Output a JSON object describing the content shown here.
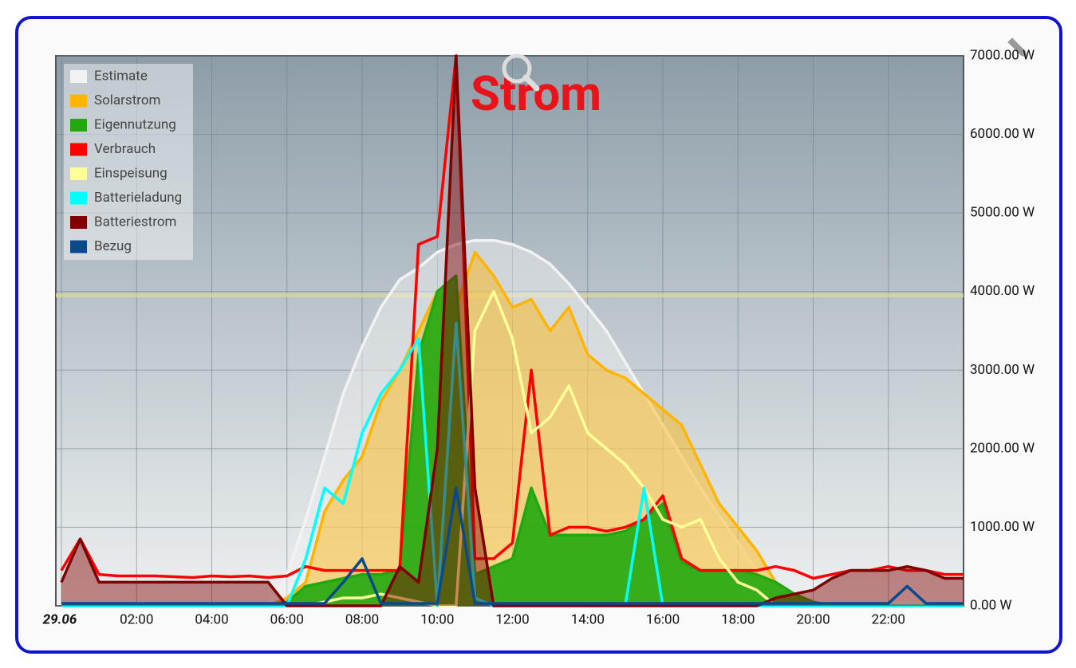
{
  "chart_data": {
    "type": "line",
    "title": "Strom",
    "x": [
      0,
      0.5,
      1,
      1.5,
      2,
      2.5,
      3,
      3.5,
      4,
      4.5,
      5,
      5.5,
      6,
      6.5,
      7,
      7.5,
      8,
      8.5,
      9,
      9.5,
      10,
      10.5,
      11,
      11.5,
      12,
      12.5,
      13,
      13.5,
      14,
      14.5,
      15,
      15.5,
      16,
      16.5,
      17,
      17.5,
      18,
      18.5,
      19,
      19.5,
      20,
      20.5,
      21,
      21.5,
      22,
      22.5,
      23,
      23.5,
      24
    ],
    "xlim": [
      0,
      24
    ],
    "xticks": [
      {
        "value": 0,
        "label": "29.06"
      },
      {
        "value": 2,
        "label": "02:00"
      },
      {
        "value": 4,
        "label": "04:00"
      },
      {
        "value": 6,
        "label": "06:00"
      },
      {
        "value": 8,
        "label": "08:00"
      },
      {
        "value": 10,
        "label": "10:00"
      },
      {
        "value": 12,
        "label": "12:00"
      },
      {
        "value": 14,
        "label": "14:00"
      },
      {
        "value": 16,
        "label": "16:00"
      },
      {
        "value": 18,
        "label": "18:00"
      },
      {
        "value": 20,
        "label": "20:00"
      },
      {
        "value": 22,
        "label": "22:00"
      }
    ],
    "ylim": [
      0,
      7000
    ],
    "yticks": [
      {
        "value": 0,
        "label": "0.00 W"
      },
      {
        "value": 1000,
        "label": "1000.00 W"
      },
      {
        "value": 2000,
        "label": "2000.00 W"
      },
      {
        "value": 3000,
        "label": "3000.00 W"
      },
      {
        "value": 4000,
        "label": "4000.00 W"
      },
      {
        "value": 5000,
        "label": "5000.00 W"
      },
      {
        "value": 6000,
        "label": "6000.00 W"
      },
      {
        "value": 7000,
        "label": "7000.00 W"
      }
    ],
    "grid": true,
    "legend": "top-left",
    "reference_line": 3950,
    "series": [
      {
        "name": "Estimate",
        "color": "#f2f2f2",
        "area": true,
        "values": [
          0,
          0,
          0,
          0,
          0,
          0,
          0,
          0,
          0,
          0,
          0,
          0,
          400,
          1100,
          1900,
          2700,
          3300,
          3800,
          4150,
          4300,
          4500,
          4600,
          4650,
          4650,
          4600,
          4500,
          4350,
          4100,
          3800,
          3500,
          3100,
          2700,
          2300,
          1900,
          1500,
          1150,
          800,
          450,
          150,
          0,
          0,
          0,
          0,
          0,
          0,
          0,
          0,
          0,
          0
        ]
      },
      {
        "name": "Solarstrom",
        "color": "#ffb400",
        "area": true,
        "values": [
          0,
          0,
          0,
          0,
          0,
          0,
          0,
          0,
          0,
          0,
          0,
          0,
          100,
          300,
          1200,
          1600,
          1900,
          2600,
          3000,
          3500,
          4000,
          3800,
          4500,
          4200,
          3800,
          3900,
          3500,
          3800,
          3200,
          3000,
          2900,
          2700,
          2500,
          2300,
          1800,
          1300,
          1000,
          700,
          300,
          150,
          50,
          0,
          0,
          0,
          0,
          0,
          0,
          0,
          0
        ]
      },
      {
        "name": "Eigennutzung",
        "color": "#22a80f",
        "area": true,
        "values": [
          0,
          0,
          0,
          0,
          0,
          0,
          0,
          0,
          0,
          0,
          0,
          0,
          50,
          250,
          300,
          350,
          400,
          400,
          450,
          3200,
          4000,
          4200,
          400,
          500,
          600,
          1500,
          900,
          900,
          900,
          900,
          950,
          1100,
          1300,
          550,
          450,
          450,
          450,
          400,
          300,
          150,
          50,
          0,
          0,
          0,
          0,
          0,
          0,
          0,
          0
        ]
      },
      {
        "name": "Verbrauch",
        "color": "#ff0000",
        "area": false,
        "values": [
          450,
          850,
          400,
          380,
          380,
          380,
          370,
          360,
          380,
          370,
          380,
          360,
          380,
          500,
          450,
          450,
          450,
          450,
          450,
          4600,
          4700,
          7000,
          600,
          600,
          800,
          3000,
          900,
          1000,
          1000,
          950,
          1000,
          1100,
          1400,
          600,
          450,
          450,
          450,
          450,
          500,
          450,
          350,
          400,
          450,
          450,
          500,
          450,
          450,
          400,
          400
        ]
      },
      {
        "name": "Einspeisung",
        "color": "#ffff99",
        "area": false,
        "values": [
          0,
          0,
          0,
          0,
          0,
          0,
          0,
          0,
          0,
          0,
          0,
          0,
          0,
          0,
          50,
          100,
          100,
          150,
          100,
          50,
          0,
          0,
          3500,
          4000,
          3400,
          2200,
          2400,
          2800,
          2200,
          2000,
          1800,
          1500,
          1100,
          1000,
          1100,
          600,
          300,
          200,
          0,
          0,
          0,
          0,
          0,
          0,
          0,
          0,
          0,
          0,
          0
        ]
      },
      {
        "name": "Batterieladung",
        "color": "#00ffff",
        "area": false,
        "values": [
          0,
          0,
          0,
          0,
          0,
          0,
          0,
          0,
          0,
          0,
          0,
          0,
          0,
          600,
          1500,
          1300,
          2200,
          2700,
          3000,
          3400,
          0,
          3600,
          100,
          0,
          0,
          0,
          0,
          0,
          0,
          0,
          0,
          1500,
          0,
          0,
          0,
          0,
          0,
          0,
          0,
          0,
          0,
          0,
          0,
          0,
          0,
          0,
          0,
          0,
          0
        ]
      },
      {
        "name": "Batteriestrom",
        "color": "#800000",
        "area": true,
        "values": [
          300,
          850,
          300,
          300,
          300,
          300,
          300,
          300,
          300,
          300,
          300,
          300,
          0,
          0,
          0,
          0,
          0,
          0,
          500,
          300,
          2000,
          7000,
          1500,
          0,
          0,
          0,
          0,
          0,
          0,
          0,
          0,
          0,
          0,
          0,
          0,
          0,
          0,
          0,
          100,
          150,
          200,
          350,
          450,
          450,
          450,
          500,
          450,
          350,
          350
        ]
      },
      {
        "name": "Bezug",
        "color": "#0a4a8a",
        "area": false,
        "values": [
          30,
          30,
          30,
          30,
          30,
          30,
          30,
          30,
          30,
          30,
          30,
          30,
          30,
          30,
          30,
          300,
          600,
          30,
          30,
          30,
          30,
          1500,
          30,
          30,
          30,
          30,
          30,
          30,
          30,
          30,
          30,
          30,
          30,
          30,
          30,
          30,
          30,
          30,
          30,
          30,
          30,
          30,
          30,
          30,
          30,
          250,
          30,
          30,
          30
        ]
      }
    ]
  }
}
